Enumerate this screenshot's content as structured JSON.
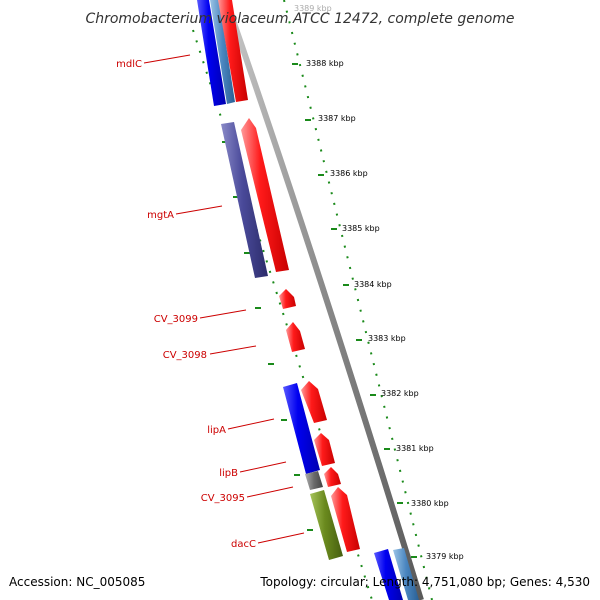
{
  "title": "Chromobacterium violaceum ATCC 12472, complete genome",
  "footer": {
    "accession": "Accession: NC_005085",
    "summary": "Topology: circular; Length: 4,751,080 bp; Genes: 4,530"
  },
  "scale_labels": [
    {
      "label": "3389 kbp",
      "faded": true
    },
    {
      "label": "3388 kbp"
    },
    {
      "label": "3387 kbp"
    },
    {
      "label": "3386 kbp"
    },
    {
      "label": "3385 kbp"
    },
    {
      "label": "3384 kbp"
    },
    {
      "label": "3383 kbp"
    },
    {
      "label": "3382 kbp"
    },
    {
      "label": "3381 kbp"
    },
    {
      "label": "3380 kbp"
    },
    {
      "label": "3379 kbp"
    }
  ],
  "gene_labels": [
    {
      "label": "mdlC"
    },
    {
      "label": "mgtA"
    },
    {
      "label": "CV_3099"
    },
    {
      "label": "CV_3098"
    },
    {
      "label": "lipA"
    },
    {
      "label": "lipB"
    },
    {
      "label": "CV_3095"
    },
    {
      "label": "dacC"
    }
  ],
  "colors": {
    "forward_cds": "#ff0000",
    "reverse_blue": "#0000ff",
    "steel_blue": "#4a86c0",
    "slate_purple": "#4a4a9a",
    "olive": "#6a8a1e",
    "gray_gene": "#6a6a6a",
    "backbone": "#8a8a8a",
    "ticks": "#1a8a1a",
    "label_red": "#cc0000"
  }
}
